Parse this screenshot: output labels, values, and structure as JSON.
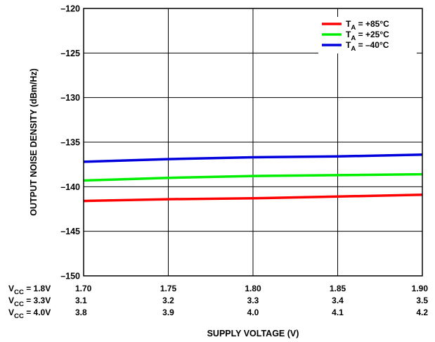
{
  "chart_data": {
    "type": "line",
    "title": "",
    "xlabel": "SUPPLY VOLTAGE (V)",
    "ylabel": "OUTPUT NOISE DENSITY (dBm/Hz)",
    "ylim": [
      -150,
      -120
    ],
    "xlim": [
      1.7,
      1.9
    ],
    "x_ticks": [
      "1.70",
      "1.75",
      "1.80",
      "1.85",
      "1.90"
    ],
    "y_ticks": [
      "–120",
      "–125",
      "–130",
      "–135",
      "–140",
      "–145",
      "–150"
    ],
    "y_tick_values": [
      -120,
      -125,
      -130,
      -135,
      -140,
      -145,
      -150
    ],
    "extra_axis_rows": [
      {
        "label_main": "V",
        "label_sub": "CC",
        "label_rest": " = 1.8V",
        "ticks": [
          "1.70",
          "1.75",
          "1.80",
          "1.85",
          "1.90"
        ]
      },
      {
        "label_main": "V",
        "label_sub": "CC",
        "label_rest": " = 3.3V",
        "ticks": [
          "3.1",
          "3.2",
          "3.3",
          "3.4",
          "3.5"
        ]
      },
      {
        "label_main": "V",
        "label_sub": "CC",
        "label_rest": " = 4.0V",
        "ticks": [
          "3.8",
          "3.9",
          "4.0",
          "4.1",
          "4.2"
        ]
      }
    ],
    "grid": true,
    "legend_position": "top-right",
    "x": [
      1.7,
      1.75,
      1.8,
      1.85,
      1.9
    ],
    "series": [
      {
        "name_main": "T",
        "name_sub": "A",
        "name_rest": " = +85°C",
        "color": "#ff0000",
        "values": [
          -141.6,
          -141.4,
          -141.3,
          -141.1,
          -140.9
        ]
      },
      {
        "name_main": "T",
        "name_sub": "A",
        "name_rest": " = +25°C",
        "color": "#00ee00",
        "values": [
          -139.3,
          -139.0,
          -138.8,
          -138.7,
          -138.6
        ]
      },
      {
        "name_main": "T",
        "name_sub": "A",
        "name_rest": " = –40°C",
        "color": "#0000dd",
        "values": [
          -137.2,
          -136.9,
          -136.7,
          -136.6,
          -136.4
        ]
      }
    ]
  }
}
